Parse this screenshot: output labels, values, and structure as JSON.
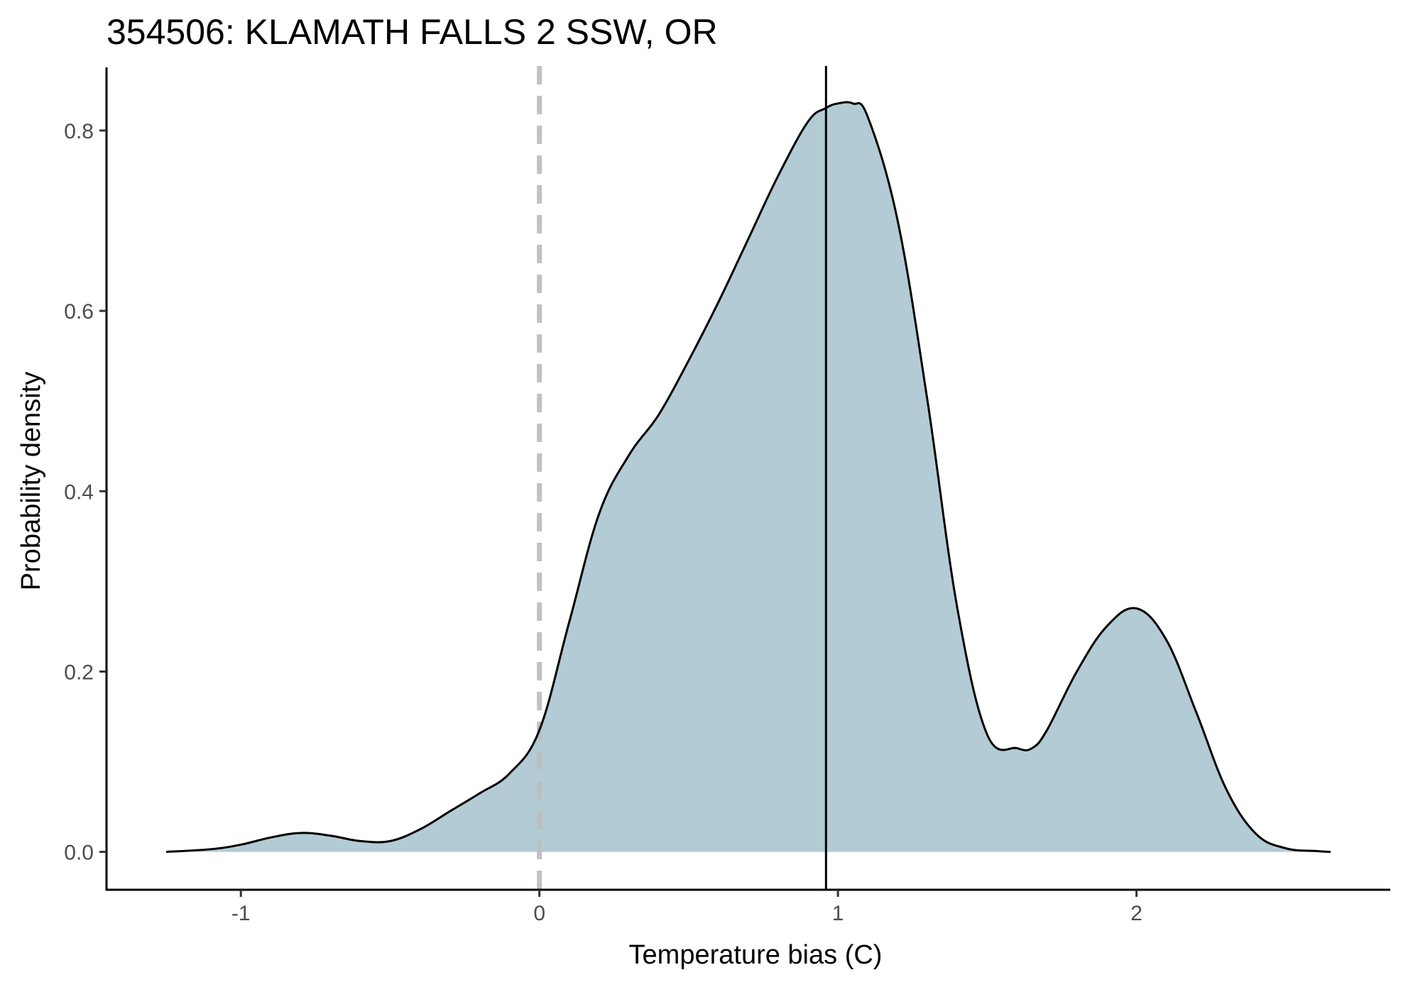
{
  "chart_data": {
    "type": "area",
    "title": "354506: KLAMATH FALLS 2 SSW, OR",
    "xlabel": "Temperature bias (C)",
    "ylabel": "Probability density",
    "xlim": [
      -1.45,
      2.85
    ],
    "ylim": [
      -0.042,
      0.87
    ],
    "x_ticks": [
      -1,
      0,
      1,
      2
    ],
    "x_tick_labels": [
      "-1",
      "0",
      "1",
      "2"
    ],
    "y_ticks": [
      0.0,
      0.2,
      0.4,
      0.6,
      0.8
    ],
    "y_tick_labels": [
      "0.0",
      "0.2",
      "0.4",
      "0.6",
      "0.8"
    ],
    "grid": false,
    "fill_color": "#b3cbd4",
    "line_color": "#000000",
    "reference_lines": [
      {
        "x": 0,
        "style": "dashed",
        "color": "#bebebe"
      },
      {
        "x": 0.96,
        "style": "solid",
        "color": "#000000"
      }
    ],
    "series": [
      {
        "x": [
          -1.25,
          -1.1,
          -1.0,
          -0.9,
          -0.8,
          -0.7,
          -0.6,
          -0.5,
          -0.4,
          -0.3,
          -0.2,
          -0.1,
          0.0,
          0.1,
          0.2,
          0.3,
          0.4,
          0.5,
          0.6,
          0.7,
          0.8,
          0.9,
          0.96,
          1.0,
          1.05,
          1.1,
          1.2,
          1.3,
          1.4,
          1.5,
          1.6,
          1.65,
          1.7,
          1.8,
          1.9,
          2.0,
          2.1,
          2.2,
          2.3,
          2.4,
          2.5,
          2.6,
          2.65
        ],
        "y": [
          0.0,
          0.003,
          0.008,
          0.016,
          0.021,
          0.018,
          0.012,
          0.012,
          0.025,
          0.045,
          0.065,
          0.087,
          0.135,
          0.255,
          0.375,
          0.44,
          0.485,
          0.545,
          0.61,
          0.68,
          0.75,
          0.81,
          0.825,
          0.83,
          0.83,
          0.815,
          0.7,
          0.5,
          0.27,
          0.13,
          0.115,
          0.115,
          0.135,
          0.2,
          0.25,
          0.27,
          0.235,
          0.155,
          0.07,
          0.02,
          0.004,
          0.001,
          0.0
        ]
      }
    ]
  }
}
